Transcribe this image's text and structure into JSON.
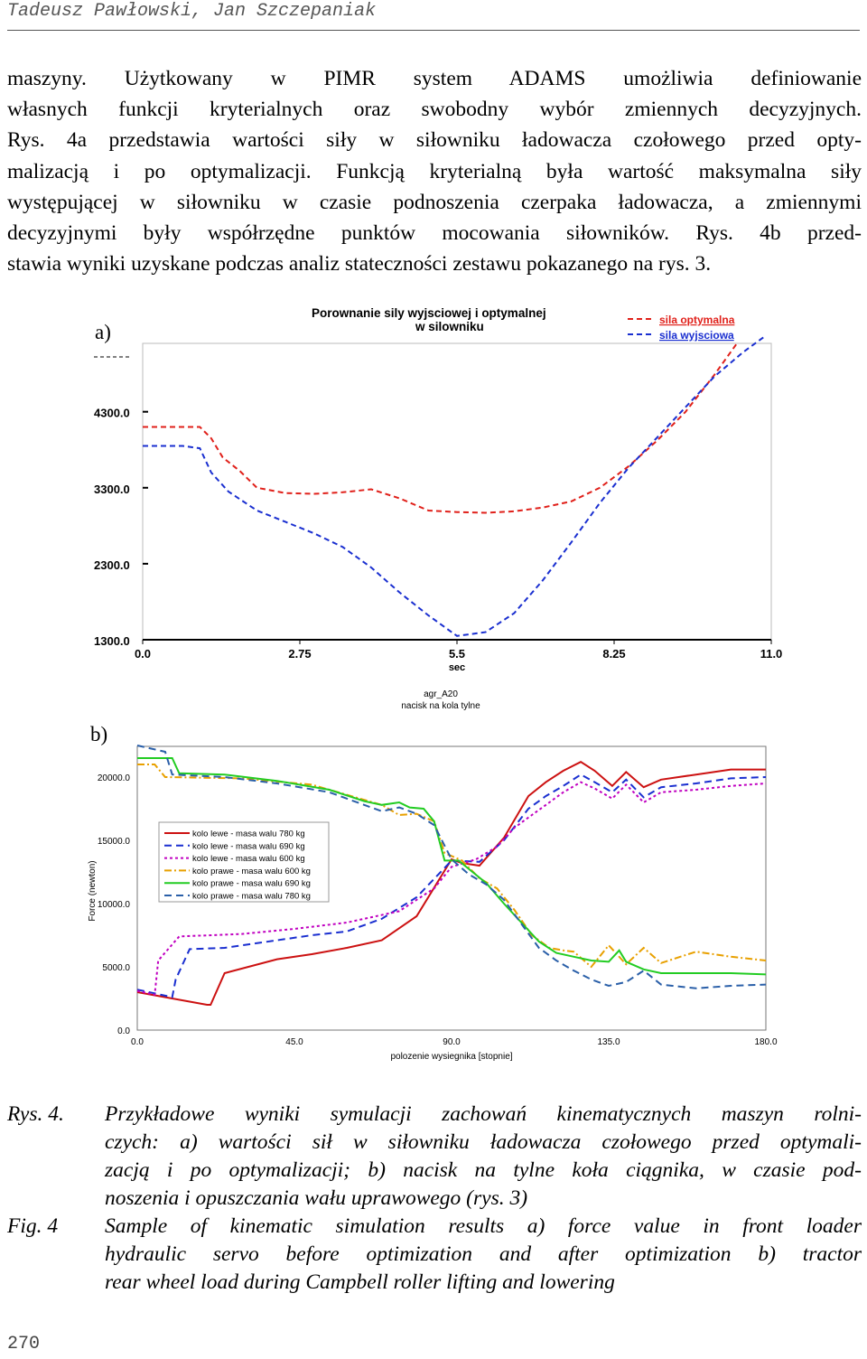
{
  "header": {
    "authors": "Tadeusz Pawłowski, Jan Szczepaniak"
  },
  "paragraph_lines": [
    "maszyny. Użytkowany w PIMR system ADAMS umożliwia definiowanie",
    "własnych funkcji kryterialnych oraz swobodny wybór zmiennych decyzyjnych.",
    "Rys. 4a przedstawia wartości siły w siłowniku ładowacza czołowego przed opty-",
    "malizacją i po optymalizacji. Funkcją kryterialną była wartość maksymalna siły",
    "występującej w siłowniku w czasie podnoszenia czerpaka ładowacza, a zmiennymi",
    "decyzyjnymi były współrzędne punktów mocowania siłowników. Rys. 4b przed-",
    "stawia wyniki uzyskane podczas analiz stateczności zestawu pokazanego na rys. 3."
  ],
  "chart_data": [
    {
      "type": "line",
      "panel_label": "a)",
      "title_lines": [
        "Porownanie sily wyjsciowej i optymalnej",
        "w silowniku"
      ],
      "xlabel": "sec",
      "x_ticks": [
        "0.0",
        "2.75",
        "5.5",
        "8.25",
        "11.0"
      ],
      "y_ticks": [
        "1300.0",
        "2300.0",
        "3300.0",
        "4300.0"
      ],
      "xlim": [
        0,
        11
      ],
      "ylim": [
        1300,
        5200
      ],
      "series": [
        {
          "name": "sila optymalna",
          "color": "#e0201a",
          "x": [
            0,
            0.6,
            1.0,
            1.2,
            1.4,
            1.7,
            2.0,
            2.5,
            3.0,
            3.5,
            4.0,
            4.5,
            5.0,
            5.5,
            6.0,
            6.5,
            7.0,
            7.5,
            8.0,
            8.5,
            9.0,
            9.5,
            10.0,
            10.4
          ],
          "y": [
            4100,
            4100,
            4100,
            3950,
            3700,
            3520,
            3300,
            3230,
            3220,
            3240,
            3280,
            3160,
            3000,
            2980,
            2970,
            2990,
            3040,
            3120,
            3300,
            3580,
            3920,
            4300,
            4780,
            5200
          ]
        },
        {
          "name": "sila wyjsciowa",
          "color": "#1a2fd0",
          "x": [
            0,
            0.7,
            1.0,
            1.2,
            1.5,
            2.0,
            2.5,
            3.0,
            3.5,
            4.0,
            4.5,
            5.0,
            5.5,
            6.0,
            6.5,
            7.0,
            7.5,
            8.0,
            8.5,
            9.0,
            9.5,
            10.0,
            10.5,
            10.9
          ],
          "y": [
            3850,
            3850,
            3820,
            3500,
            3250,
            3000,
            2850,
            2700,
            2520,
            2250,
            1920,
            1620,
            1350,
            1400,
            1650,
            2080,
            2580,
            3100,
            3560,
            3960,
            4360,
            4760,
            5080,
            5300
          ]
        }
      ]
    },
    {
      "type": "line",
      "panel_label": "b)",
      "title_lines": [
        "agr_A20",
        "nacisk na kola tylne"
      ],
      "xlabel": "polozenie wysiegnika [stopnie]",
      "ylabel": "Force (newton)",
      "x_ticks": [
        "0.0",
        "45.0",
        "90.0",
        "135.0",
        "180.0"
      ],
      "y_ticks": [
        "0.0",
        "5000.0",
        "10000.0",
        "15000.0",
        "20000.0"
      ],
      "xlim": [
        0,
        180
      ],
      "ylim": [
        0,
        22500
      ],
      "series": [
        {
          "name": "kolo lewe - masa walu 780 kg",
          "color": "#cc1111",
          "dash": "solid",
          "x": [
            0,
            20,
            21,
            25,
            40,
            50,
            60,
            70,
            80,
            90,
            93,
            98,
            105,
            112,
            117,
            122,
            127,
            131,
            136,
            140,
            145,
            150,
            155,
            160,
            170,
            180
          ],
          "y": [
            3000,
            2000,
            2000,
            4500,
            5600,
            6000,
            6500,
            7100,
            9000,
            13500,
            13200,
            13000,
            15200,
            18500,
            19600,
            20500,
            21200,
            20500,
            19300,
            20400,
            19200,
            19800,
            20000,
            20200,
            20600,
            20600
          ]
        },
        {
          "name": "kolo lewe - masa walu 690 kg",
          "color": "#1a2fd0",
          "dash": "8,5",
          "x": [
            0,
            10,
            11,
            15,
            25,
            40,
            50,
            60,
            70,
            80,
            90,
            98,
            105,
            112,
            117,
            122,
            127,
            131,
            136,
            140,
            145,
            150,
            160,
            170,
            180
          ],
          "y": [
            3200,
            2600,
            4000,
            6400,
            6500,
            7100,
            7500,
            7800,
            8800,
            10500,
            13400,
            13300,
            15000,
            17500,
            18500,
            19300,
            20200,
            19600,
            18800,
            19800,
            18400,
            19200,
            19500,
            19900,
            20000
          ]
        },
        {
          "name": "kolo lewe - masa walu 600 kg",
          "color": "#c000c0",
          "dash": "3,3",
          "x": [
            0,
            5,
            6,
            12,
            30,
            45,
            60,
            75,
            85,
            90,
            97,
            103,
            108,
            113,
            118,
            122,
            127,
            131,
            136,
            140,
            145,
            150,
            160,
            170,
            180
          ],
          "y": [
            3100,
            2800,
            5500,
            7400,
            7600,
            8000,
            8500,
            9400,
            11200,
            12900,
            13500,
            14500,
            16000,
            17000,
            18000,
            18800,
            19600,
            19100,
            18300,
            19400,
            18000,
            18800,
            19000,
            19300,
            19500
          ]
        },
        {
          "name": "kolo prawe - masa walu 600 kg",
          "color": "#e8a000",
          "dash": "8,3,2,3",
          "x": [
            0,
            5,
            8,
            30,
            50,
            70,
            75,
            80,
            85,
            88,
            93,
            98,
            103,
            108,
            113,
            118,
            122,
            125,
            130,
            135,
            140,
            145,
            150,
            160,
            170,
            180
          ],
          "y": [
            21000,
            21000,
            20000,
            19900,
            19400,
            17800,
            17000,
            17100,
            16500,
            14000,
            13400,
            12000,
            11200,
            9500,
            7500,
            6500,
            6300,
            6200,
            5000,
            6700,
            5200,
            6500,
            5300,
            6200,
            5800,
            5500
          ]
        },
        {
          "name": "kolo prawe - masa walu 690 kg",
          "color": "#22cc22",
          "dash": "solid",
          "x": [
            0,
            10,
            12,
            25,
            40,
            55,
            65,
            70,
            75,
            78,
            82,
            85,
            88,
            92,
            96,
            100,
            105,
            110,
            115,
            120,
            125,
            130,
            135,
            138,
            140,
            145,
            150,
            160,
            170,
            180
          ],
          "y": [
            21500,
            21500,
            20300,
            20200,
            19700,
            19000,
            18100,
            17800,
            18000,
            17600,
            17500,
            16500,
            13400,
            13400,
            12500,
            11600,
            10000,
            8500,
            7000,
            6100,
            5800,
            5500,
            5400,
            6300,
            5400,
            4800,
            4500,
            4500,
            4500,
            4400
          ]
        },
        {
          "name": "kolo prawe - masa walu 780 kg",
          "color": "#2a5fa8",
          "dash": "8,5",
          "x": [
            0,
            8,
            10,
            25,
            40,
            55,
            65,
            70,
            75,
            80,
            85,
            90,
            95,
            100,
            105,
            110,
            115,
            120,
            125,
            130,
            135,
            140,
            145,
            150,
            160,
            170,
            180
          ],
          "y": [
            22500,
            22000,
            20200,
            20000,
            19500,
            18800,
            17800,
            17300,
            17600,
            17100,
            16200,
            13500,
            12300,
            11500,
            10300,
            8400,
            6500,
            5500,
            4700,
            4000,
            3500,
            3800,
            4700,
            3600,
            3300,
            3500,
            3600
          ]
        }
      ]
    }
  ],
  "caption": {
    "pl_label": "Rys. 4.",
    "pl_lines": [
      "Przykładowe wyniki symulacji zachowań kinematycznych maszyn rolni-",
      "czych: a) wartości sił w siłowniku ładowacza czołowego przed optymali-",
      "zacją i po optymalizacji; b) nacisk na tylne koła ciągnika, w czasie pod-",
      "noszenia i opuszczania wału uprawowego (rys. 3)"
    ],
    "en_label": "Fig. 4",
    "en_lines": [
      "Sample of kinematic simulation results a) force value in front loader",
      "hydraulic servo before optimization and after optimization b) tractor",
      "rear wheel load during Campbell roller lifting and lowering"
    ]
  },
  "page_number": "270"
}
